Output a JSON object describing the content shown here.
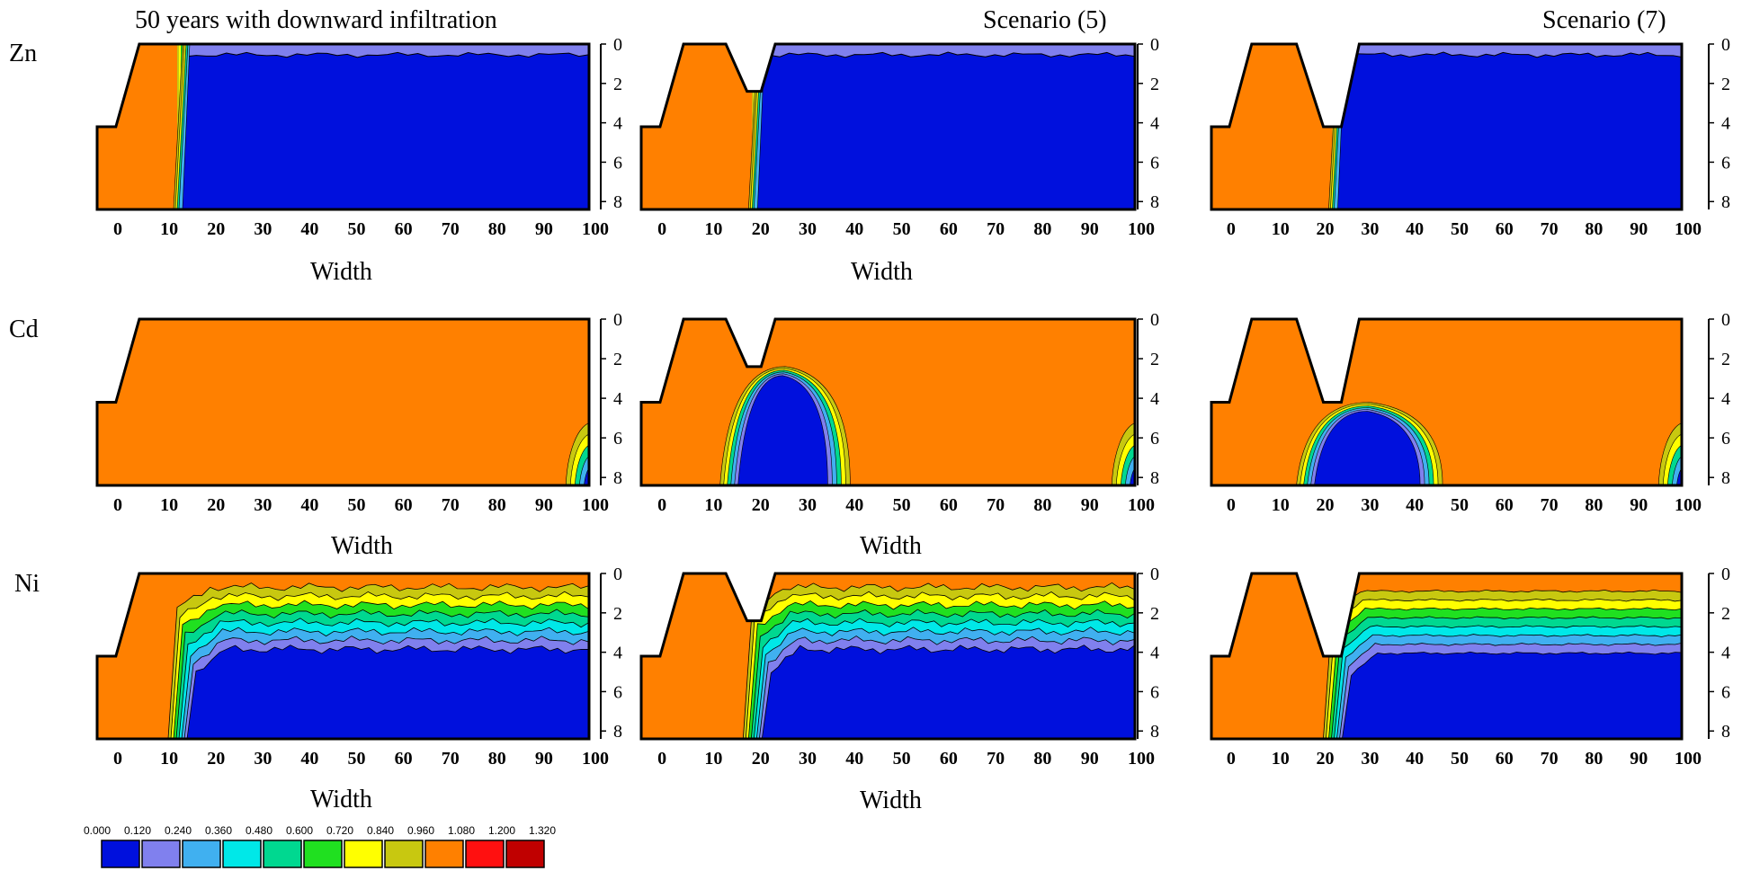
{
  "chart_data": {
    "type": "contour-grid",
    "column_titles": [
      "50 years with downward infiltration",
      "Scenario (5)",
      "Scenario (7)"
    ],
    "row_labels": [
      "Zn",
      "Cd",
      "Ni"
    ],
    "xlabel": "Width",
    "x_ticks": [
      0,
      10,
      20,
      30,
      40,
      50,
      60,
      70,
      80,
      90,
      100
    ],
    "y_ticks": [
      0,
      2,
      4,
      6,
      8
    ],
    "ylim": [
      0,
      8.4
    ],
    "xlim": [
      -5,
      100
    ],
    "legend": {
      "breaks": [
        "0.000",
        "0.120",
        "0.240",
        "0.360",
        "0.480",
        "0.600",
        "0.720",
        "0.840",
        "0.960",
        "1.080",
        "1.200",
        "1.320"
      ],
      "colors": [
        "#0010dd",
        "#8080ee",
        "#40b0f0",
        "#00e8e8",
        "#00d890",
        "#20e020",
        "#ffff00",
        "#c8c810",
        "#ff8000",
        "#ff1010",
        "#c00000"
      ]
    },
    "panels": [
      {
        "row": "Zn",
        "col": 0,
        "trench": null,
        "profile": "zn"
      },
      {
        "row": "Zn",
        "col": 1,
        "trench": "s5",
        "profile": "zn"
      },
      {
        "row": "Zn",
        "col": 2,
        "trench": "s7",
        "profile": "zn"
      },
      {
        "row": "Cd",
        "col": 0,
        "trench": null,
        "profile": "cd"
      },
      {
        "row": "Cd",
        "col": 1,
        "trench": "s5",
        "profile": "cd"
      },
      {
        "row": "Cd",
        "col": 2,
        "trench": "s7",
        "profile": "cd"
      },
      {
        "row": "Ni",
        "col": 0,
        "trench": null,
        "profile": "ni"
      },
      {
        "row": "Ni",
        "col": 1,
        "trench": "s5",
        "profile": "ni"
      },
      {
        "row": "Ni",
        "col": 2,
        "trench": "s7",
        "profile": "ni"
      }
    ]
  }
}
